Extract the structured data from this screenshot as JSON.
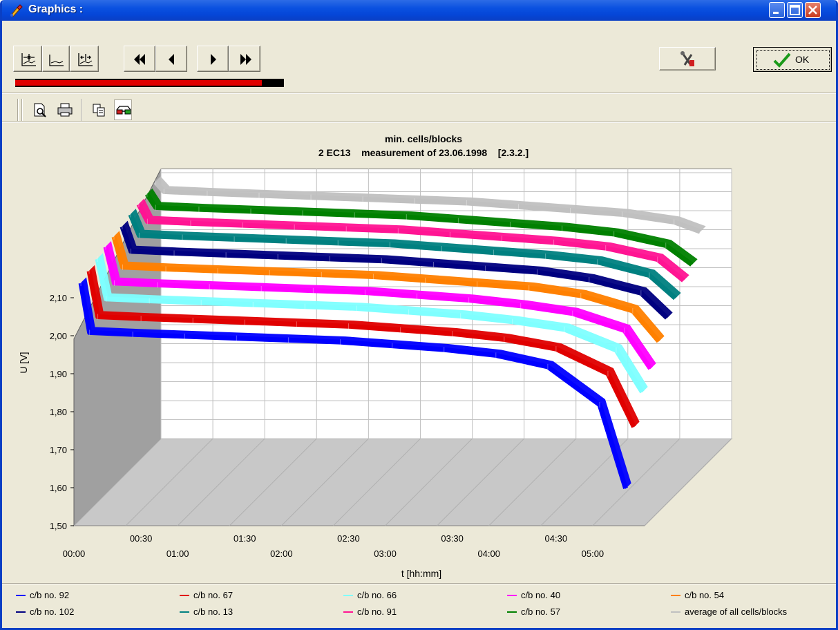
{
  "window": {
    "title": "Graphics :"
  },
  "toolbar": {
    "ok_label": "OK",
    "progress_fraction": 0.918
  },
  "chart_data": {
    "type": "line",
    "title": "min. cells/blocks",
    "subtitle": "2 EC13    measurement of 23.06.1998    [2.3.2.]",
    "xlabel": "t [hh:mm]",
    "ylabel": "U [V]",
    "ylim": [
      1.5,
      2.2
    ],
    "yticks": [
      "1,50",
      "1,60",
      "1,70",
      "1,80",
      "1,90",
      "2,00",
      "2,10"
    ],
    "xlim": [
      "00:00",
      "05:30"
    ],
    "xticks_lower": [
      "00:00",
      "01:00",
      "02:00",
      "03:00",
      "04:00",
      "05:00"
    ],
    "xticks_upper": [
      "00:30",
      "01:30",
      "02:30",
      "03:30",
      "04:30"
    ],
    "legend_placement": "bottom",
    "x": [
      "00:00",
      "00:05",
      "00:30",
      "01:00",
      "01:30",
      "02:00",
      "02:30",
      "03:00",
      "03:30",
      "04:00",
      "04:30",
      "05:00",
      "05:15"
    ],
    "series": [
      {
        "name": "c/b no. 92",
        "color": "#0000FF",
        "end": "05:15",
        "values": [
          2.12,
          1.99,
          1.985,
          1.98,
          1.975,
          1.97,
          1.965,
          1.955,
          1.945,
          1.93,
          1.9,
          1.8,
          1.58
        ]
      },
      {
        "name": "c/b no. 67",
        "color": "#E00000",
        "end": "05:15",
        "values": [
          2.13,
          2.01,
          2.005,
          2.0,
          1.995,
          1.99,
          1.985,
          1.975,
          1.965,
          1.95,
          1.925,
          1.86,
          1.72
        ]
      },
      {
        "name": "c/b no. 66",
        "color": "#7FFFFF",
        "end": "05:15",
        "values": [
          2.14,
          2.035,
          2.03,
          2.025,
          2.02,
          2.015,
          2.01,
          2.0,
          1.99,
          1.975,
          1.955,
          1.9,
          1.79
        ]
      },
      {
        "name": "c/b no. 40",
        "color": "#FF00FF",
        "end": "05:15",
        "values": [
          2.15,
          2.055,
          2.05,
          2.045,
          2.04,
          2.035,
          2.03,
          2.02,
          2.01,
          1.995,
          1.975,
          1.93,
          1.83
        ]
      },
      {
        "name": "c/b no. 54",
        "color": "#FF8000",
        "end": "05:15",
        "values": [
          2.155,
          2.075,
          2.07,
          2.065,
          2.06,
          2.055,
          2.05,
          2.04,
          2.03,
          2.02,
          2.0,
          1.96,
          1.88
        ]
      },
      {
        "name": "c/b no. 102",
        "color": "#000080",
        "end": "05:15",
        "values": [
          2.16,
          2.095,
          2.09,
          2.085,
          2.08,
          2.075,
          2.07,
          2.06,
          2.05,
          2.04,
          2.02,
          1.985,
          1.92
        ]
      },
      {
        "name": "c/b no. 13",
        "color": "#008080",
        "end": "05:15",
        "values": [
          2.17,
          2.115,
          2.11,
          2.105,
          2.1,
          2.095,
          2.09,
          2.08,
          2.07,
          2.06,
          2.045,
          2.01,
          1.95
        ]
      },
      {
        "name": "c/b no. 91",
        "color": "#FF1493",
        "end": "05:15",
        "values": [
          2.175,
          2.13,
          2.125,
          2.12,
          2.115,
          2.11,
          2.105,
          2.095,
          2.085,
          2.075,
          2.06,
          2.03,
          1.975
        ]
      },
      {
        "name": "c/b no. 57",
        "color": "#008000",
        "end": "05:15",
        "values": [
          2.18,
          2.145,
          2.14,
          2.135,
          2.13,
          2.125,
          2.12,
          2.11,
          2.1,
          2.09,
          2.075,
          2.045,
          1.995
        ]
      },
      {
        "name": "average of all cells/blocks",
        "color": "#C0C0C0",
        "end": "05:15",
        "values": [
          2.19,
          2.165,
          2.16,
          2.155,
          2.15,
          2.145,
          2.14,
          2.135,
          2.125,
          2.115,
          2.105,
          2.085,
          2.06
        ]
      }
    ]
  }
}
